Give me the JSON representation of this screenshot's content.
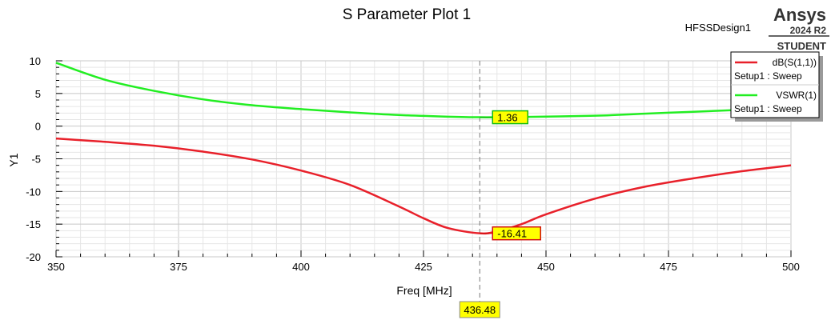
{
  "chart_data": {
    "type": "line",
    "title": "S Parameter Plot 1",
    "design": "HFSSDesign1",
    "brand": {
      "name": "Ansys",
      "version": "2024 R2",
      "edition": "STUDENT"
    },
    "xlabel": "Freq [MHz]",
    "ylabel": "Y1",
    "xlim": [
      350,
      500
    ],
    "ylim": [
      -20,
      10
    ],
    "x_ticks": [
      "350",
      "375",
      "400",
      "425",
      "450",
      "475",
      "500"
    ],
    "y_ticks": [
      "10",
      "5",
      "0",
      "-5",
      "-10",
      "-15",
      "-20"
    ],
    "grid": true,
    "legend_position": "top-right",
    "series": [
      {
        "name": "dB(S(1,1))",
        "setup": "Setup1 : Sweep",
        "color": "#e8202a",
        "x": [
          350,
          360,
          370,
          380,
          390,
          400,
          410,
          420,
          425,
          430,
          436.48,
          440,
          445,
          450,
          460,
          470,
          480,
          490,
          500
        ],
        "y": [
          -1.9,
          -2.4,
          -3.0,
          -3.9,
          -5.1,
          -6.8,
          -9.0,
          -12.3,
          -14.1,
          -15.6,
          -16.41,
          -16.1,
          -15.0,
          -13.5,
          -11.1,
          -9.3,
          -8.0,
          -6.9,
          -6.0
        ]
      },
      {
        "name": "VSWR(1)",
        "setup": "Setup1 : Sweep",
        "color": "#22ee22",
        "x": [
          350,
          360,
          370,
          380,
          390,
          400,
          410,
          420,
          430,
          436.48,
          445,
          460,
          470,
          480,
          490,
          500
        ],
        "y": [
          9.7,
          7.1,
          5.4,
          4.1,
          3.2,
          2.6,
          2.1,
          1.7,
          1.45,
          1.36,
          1.4,
          1.6,
          1.9,
          2.2,
          2.5,
          2.8
        ]
      }
    ],
    "marker": {
      "x": 436.48,
      "x_label": "436.48",
      "labels": [
        {
          "series": "dB(S(1,1))",
          "value": -16.41,
          "text": "-16.41"
        },
        {
          "series": "VSWR(1)",
          "value": 1.36,
          "text": "1.36"
        }
      ]
    }
  }
}
